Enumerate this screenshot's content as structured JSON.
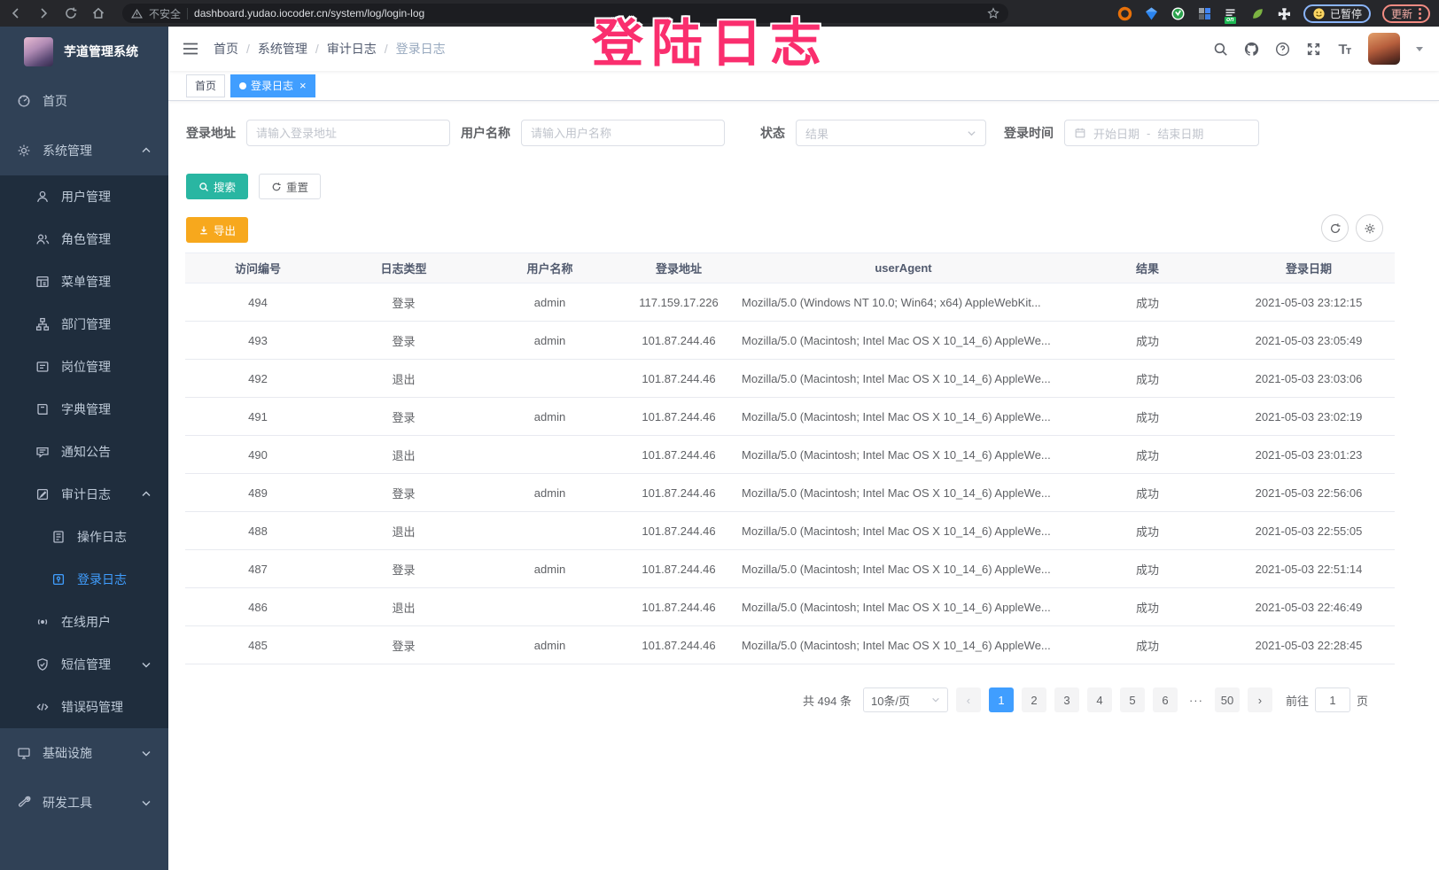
{
  "browser": {
    "security_label": "不安全",
    "url": "dashboard.yudao.iocoder.cn/system/log/login-log",
    "extensions": [
      {
        "key": "ext-orange-ring-icon"
      },
      {
        "key": "ext-blue-gem-icon"
      },
      {
        "key": "ext-green-circle-icon"
      },
      {
        "key": "ext-grid-icon"
      },
      {
        "key": "ext-list-on-icon",
        "badge": "on"
      },
      {
        "key": "ext-green-leaf-icon"
      },
      {
        "key": "ext-puzzle-icon"
      }
    ],
    "paused_badge": "已暂停",
    "update_button": "更新"
  },
  "annotation": {
    "text": "登陆日志",
    "color": "#FA2E6E"
  },
  "sidebar": {
    "logo_title": "芋道管理系统",
    "menu": [
      {
        "key": "home",
        "label": "首页",
        "icon": "dashboard-icon",
        "level": 1
      },
      {
        "key": "system-management",
        "label": "系统管理",
        "icon": "gear-icon",
        "level": 1,
        "chevron": "up"
      },
      {
        "key": "user-management",
        "label": "用户管理",
        "icon": "user-icon",
        "level": 2
      },
      {
        "key": "role-management",
        "label": "角色管理",
        "icon": "peoples-icon",
        "level": 2
      },
      {
        "key": "menu-management",
        "label": "菜单管理",
        "icon": "tree-table-icon",
        "level": 2
      },
      {
        "key": "dept-management",
        "label": "部门管理",
        "icon": "tree-icon",
        "level": 2
      },
      {
        "key": "post-management",
        "label": "岗位管理",
        "icon": "post-icon",
        "level": 2
      },
      {
        "key": "dict-management",
        "label": "字典管理",
        "icon": "dict-icon",
        "level": 2
      },
      {
        "key": "notice-announcement",
        "label": "通知公告",
        "icon": "message-icon",
        "level": 2
      },
      {
        "key": "audit-log",
        "label": "审计日志",
        "icon": "log-icon",
        "level": 2,
        "chevron": "up"
      },
      {
        "key": "operation-log",
        "label": "操作日志",
        "icon": "form-icon",
        "level": 3
      },
      {
        "key": "login-log",
        "label": "登录日志",
        "icon": "logininfor-icon",
        "level": 3,
        "active": true
      },
      {
        "key": "online-users",
        "label": "在线用户",
        "icon": "online-icon",
        "level": 2
      },
      {
        "key": "sms-management",
        "label": "短信管理",
        "icon": "sms-icon",
        "level": 2,
        "chevron": "down"
      },
      {
        "key": "error-code-management",
        "label": "错误码管理",
        "icon": "code-icon",
        "level": 2
      },
      {
        "key": "infrastructure",
        "label": "基础设施",
        "icon": "monitor-icon",
        "level": 1,
        "chevron": "down"
      },
      {
        "key": "dev-tools",
        "label": "研发工具",
        "icon": "tool-icon",
        "level": 1,
        "chevron": "down"
      }
    ]
  },
  "navbar": {
    "breadcrumb": [
      "首页",
      "系统管理",
      "审计日志",
      "登录日志"
    ]
  },
  "tags": [
    {
      "label": "首页",
      "active": false,
      "closable": false
    },
    {
      "label": "登录日志",
      "active": true,
      "closable": true
    }
  ],
  "filters": {
    "login_address": {
      "label": "登录地址",
      "placeholder": "请输入登录地址"
    },
    "username": {
      "label": "用户名称",
      "placeholder": "请输入用户名称"
    },
    "status": {
      "label": "状态",
      "placeholder": "结果"
    },
    "login_time": {
      "label": "登录时间",
      "start_placeholder": "开始日期",
      "separator": "-",
      "end_placeholder": "结束日期"
    },
    "search_label": "搜索",
    "reset_label": "重置"
  },
  "toolbar": {
    "export_label": "导出"
  },
  "table": {
    "headers": [
      "访问编号",
      "日志类型",
      "用户名称",
      "登录地址",
      "userAgent",
      "结果",
      "登录日期"
    ],
    "rows": [
      [
        "494",
        "登录",
        "admin",
        "117.159.17.226",
        "Mozilla/5.0 (Windows NT 10.0; Win64; x64) AppleWebKit...",
        "成功",
        "2021-05-03 23:12:15"
      ],
      [
        "493",
        "登录",
        "admin",
        "101.87.244.46",
        "Mozilla/5.0 (Macintosh; Intel Mac OS X 10_14_6) AppleWe...",
        "成功",
        "2021-05-03 23:05:49"
      ],
      [
        "492",
        "退出",
        "",
        "101.87.244.46",
        "Mozilla/5.0 (Macintosh; Intel Mac OS X 10_14_6) AppleWe...",
        "成功",
        "2021-05-03 23:03:06"
      ],
      [
        "491",
        "登录",
        "admin",
        "101.87.244.46",
        "Mozilla/5.0 (Macintosh; Intel Mac OS X 10_14_6) AppleWe...",
        "成功",
        "2021-05-03 23:02:19"
      ],
      [
        "490",
        "退出",
        "",
        "101.87.244.46",
        "Mozilla/5.0 (Macintosh; Intel Mac OS X 10_14_6) AppleWe...",
        "成功",
        "2021-05-03 23:01:23"
      ],
      [
        "489",
        "登录",
        "admin",
        "101.87.244.46",
        "Mozilla/5.0 (Macintosh; Intel Mac OS X 10_14_6) AppleWe...",
        "成功",
        "2021-05-03 22:56:06"
      ],
      [
        "488",
        "退出",
        "",
        "101.87.244.46",
        "Mozilla/5.0 (Macintosh; Intel Mac OS X 10_14_6) AppleWe...",
        "成功",
        "2021-05-03 22:55:05"
      ],
      [
        "487",
        "登录",
        "admin",
        "101.87.244.46",
        "Mozilla/5.0 (Macintosh; Intel Mac OS X 10_14_6) AppleWe...",
        "成功",
        "2021-05-03 22:51:14"
      ],
      [
        "486",
        "退出",
        "",
        "101.87.244.46",
        "Mozilla/5.0 (Macintosh; Intel Mac OS X 10_14_6) AppleWe...",
        "成功",
        "2021-05-03 22:46:49"
      ],
      [
        "485",
        "登录",
        "admin",
        "101.87.244.46",
        "Mozilla/5.0 (Macintosh; Intel Mac OS X 10_14_6) AppleWe...",
        "成功",
        "2021-05-03 22:28:45"
      ]
    ]
  },
  "pagination": {
    "total_label": "共 494 条",
    "page_size": "10条/页",
    "prev": "‹",
    "next": "›",
    "pages": [
      "1",
      "2",
      "3",
      "4",
      "5",
      "6",
      "···",
      "50"
    ],
    "active_page": "1",
    "goto_label": "前往",
    "goto_value": "1",
    "page_unit": "页"
  },
  "colors": {
    "accent": "#409EFF",
    "sidebar_bg": "#304156",
    "submenu_bg": "#1F2D3D",
    "search_button": "#29B6A2",
    "export_button": "#F7A81D",
    "annotation": "#FA2E6E",
    "tag_active": "#409EFF"
  }
}
